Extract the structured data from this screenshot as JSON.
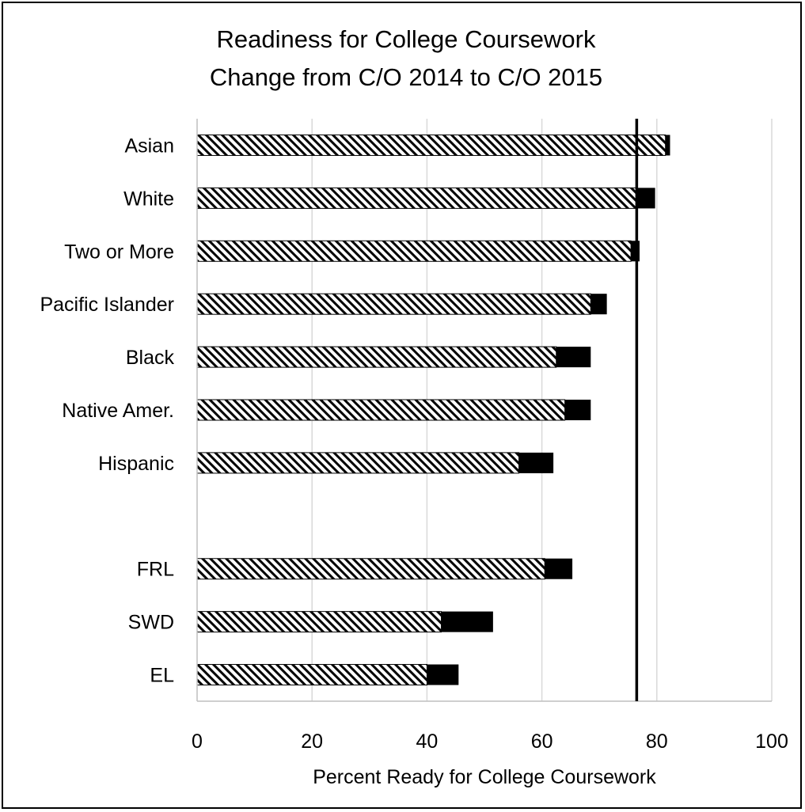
{
  "chart_data": {
    "type": "bar",
    "orientation": "horizontal",
    "stacked": true,
    "title": [
      "Readiness for College Coursework",
      "Change from C/O 2014 to C/O 2015"
    ],
    "xlabel": "Percent Ready for College Coursework",
    "ylabel": "",
    "xlim": [
      0,
      100
    ],
    "xticks": [
      0,
      20,
      40,
      60,
      80,
      100
    ],
    "grid": true,
    "legend": "none",
    "categories": [
      "Asian",
      "White",
      "Two or More",
      "Pacific Islander",
      "Black",
      "Native Amer.",
      "Hispanic",
      "",
      "FRL",
      "SWD",
      "EL"
    ],
    "series": [
      {
        "values": [
          81.5,
          76.5,
          75.5,
          68.5,
          62.5,
          64,
          56,
          null,
          60.5,
          42.5,
          40
        ],
        "pattern": "hatched"
      },
      {
        "values": [
          0.8,
          3.2,
          1.5,
          2.8,
          6,
          4.5,
          6,
          null,
          4.8,
          9,
          5.5
        ],
        "pattern": "solid",
        "color": "#000000"
      }
    ],
    "reference_line": {
      "x": 76.5
    }
  }
}
